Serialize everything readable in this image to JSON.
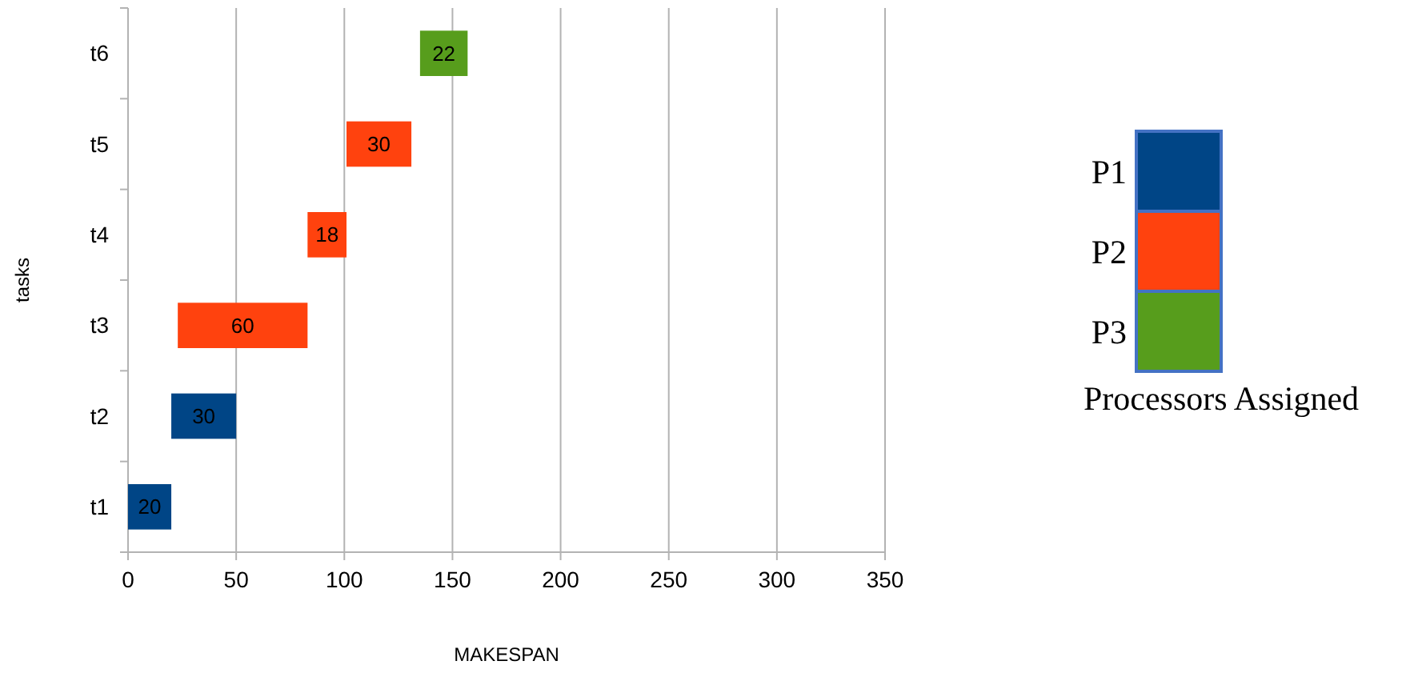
{
  "chart_data": {
    "type": "bar",
    "orientation": "horizontal",
    "xlabel": "MAKESPAN",
    "ylabel": "tasks",
    "legend_title": "Processors Assigned",
    "legend": "right",
    "grid": "x",
    "data_labels": true,
    "categories": [
      "t6",
      "t5",
      "t4",
      "t3",
      "t2",
      "t1"
    ],
    "xlim": [
      0,
      350
    ],
    "xticks": [
      0,
      50,
      100,
      150,
      200,
      250,
      300,
      350
    ],
    "series": [
      {
        "name": "P1",
        "color": "#004586",
        "values": [
          null,
          null,
          null,
          null,
          30,
          20
        ],
        "base": [
          null,
          null,
          null,
          null,
          20,
          0
        ]
      },
      {
        "name": "P2",
        "color": "#ff420e",
        "values": [
          null,
          30,
          18,
          60,
          null,
          null
        ],
        "base": [
          null,
          101,
          83,
          23,
          null,
          null
        ]
      },
      {
        "name": "P3",
        "color": "#579d1c",
        "values": [
          22,
          null,
          null,
          null,
          null,
          null
        ],
        "base": [
          135,
          null,
          null,
          null,
          null,
          null
        ]
      }
    ]
  }
}
